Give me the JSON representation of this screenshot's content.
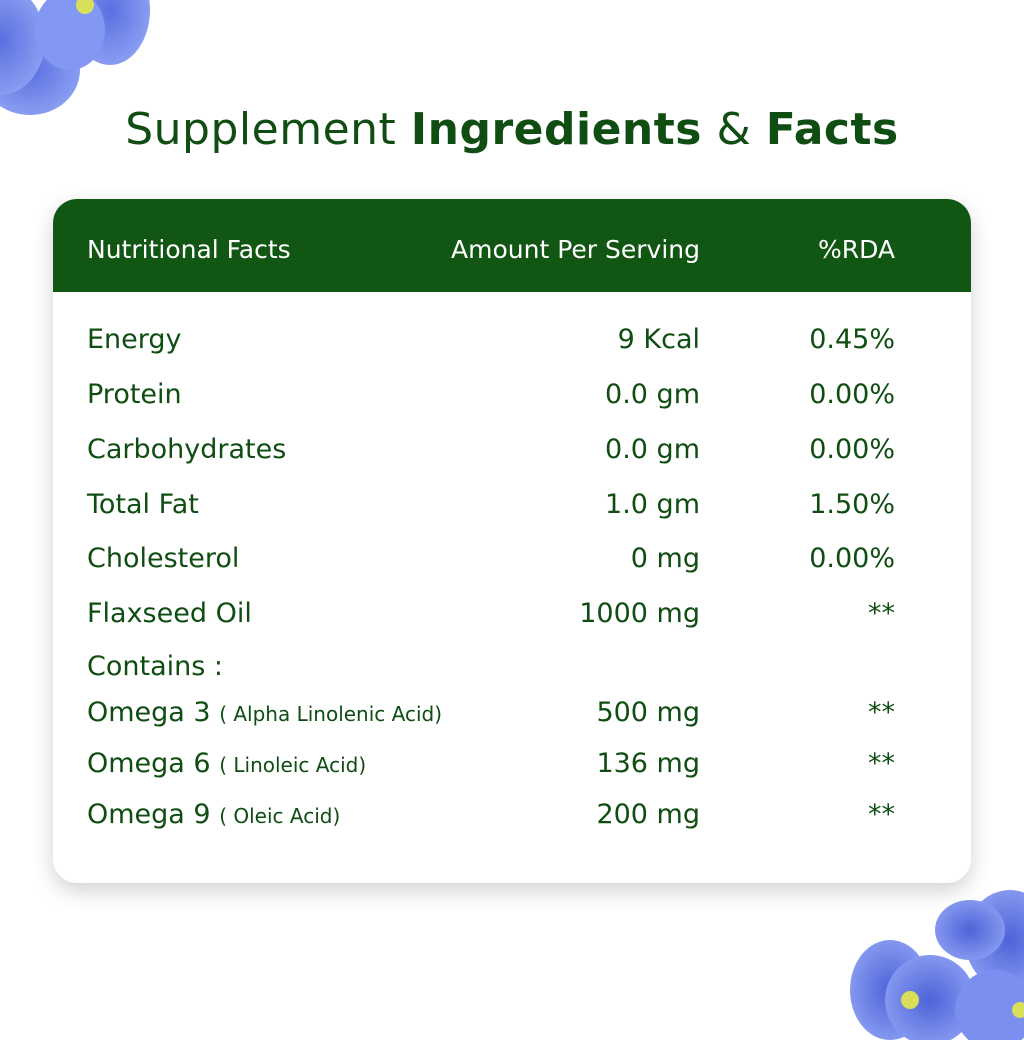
{
  "title": {
    "part1": "Supplement ",
    "part2": "Ingredients",
    "part3": " & ",
    "part4": "Facts"
  },
  "table": {
    "headers": [
      "Nutritional Facts",
      "Amount Per Serving",
      "%RDA"
    ],
    "rows": [
      {
        "name": "Energy",
        "amount": "9 Kcal",
        "rda": "0.45%"
      },
      {
        "name": "Protein",
        "amount": "0.0 gm",
        "rda": "0.00%"
      },
      {
        "name": "Carbohydrates",
        "amount": "0.0 gm",
        "rda": "0.00%"
      },
      {
        "name": "Total Fat",
        "amount": "1.0 gm",
        "rda": "1.50%"
      },
      {
        "name": "Cholesterol",
        "amount": "0 mg",
        "rda": "0.00%"
      },
      {
        "name": "Flaxseed Oil",
        "amount": "1000 mg",
        "rda": "**"
      }
    ],
    "contains_label": "Contains :",
    "sub_rows": [
      {
        "name": "Omega 3",
        "note": "( Alpha Linolenic Acid)",
        "amount": "500 mg",
        "rda": "**"
      },
      {
        "name": "Omega 6",
        "note": "( Linoleic Acid)",
        "amount": "136 mg",
        "rda": "**"
      },
      {
        "name": "Omega 9",
        "note": "( Oleic Acid)",
        "amount": "200 mg",
        "rda": "**"
      }
    ]
  },
  "colors": {
    "header_green": "#125614",
    "text_green": "#0f4d12",
    "flower_blue": "#6f86ec"
  }
}
